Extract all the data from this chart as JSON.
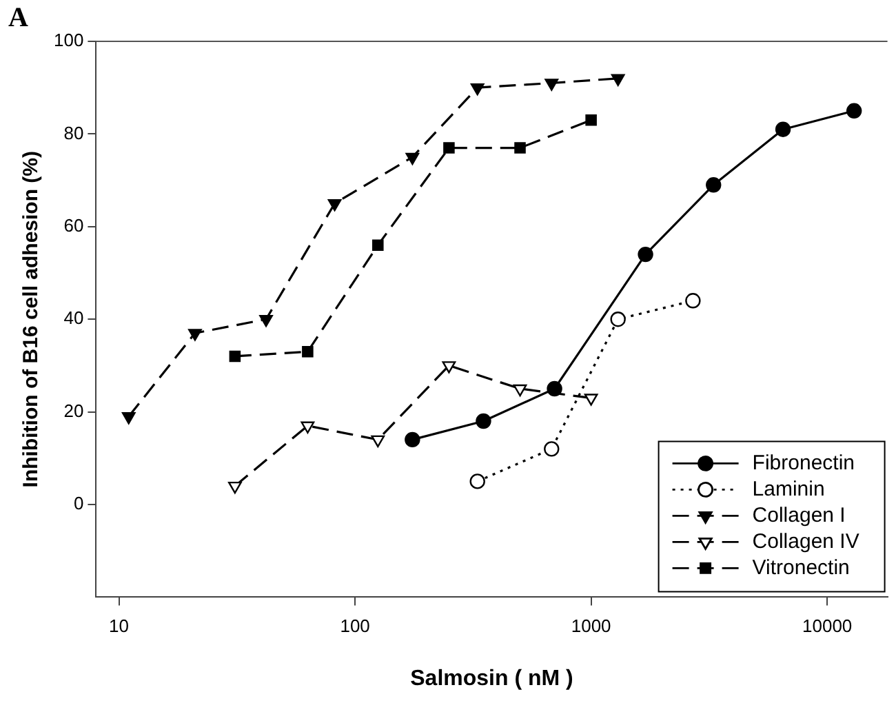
{
  "chart_data": {
    "type": "line",
    "xlabel": "Salmosin ( nM )",
    "ylabel": "Inhibition of B16 cell adhesion (%)",
    "annotations": [
      "A"
    ],
    "log": "x",
    "xlim": [
      8,
      18000
    ],
    "xticks": [
      10,
      100,
      1000,
      10000
    ],
    "ylim": [
      -20,
      100
    ],
    "yticks": [
      0,
      20,
      40,
      60,
      80,
      100
    ],
    "grid": false,
    "legend": "bottom right",
    "series": [
      {
        "name": "Fibronectin",
        "color": "#000000",
        "marker": "circle",
        "line_style": "solid",
        "x": [
          175,
          350,
          700,
          1700,
          3300,
          6500,
          13000
        ],
        "values": [
          14,
          18,
          25,
          54,
          69,
          81,
          85
        ]
      },
      {
        "name": "Laminin",
        "color": "#000000",
        "marker": "circle",
        "line_style": "dotted",
        "x": [
          330,
          680,
          1300,
          2700
        ],
        "values": [
          5,
          12,
          40,
          44
        ]
      },
      {
        "name": "Collagen I",
        "color": "#000000",
        "marker": "triangle",
        "line_style": "dashed",
        "x": [
          11,
          21,
          42,
          82,
          175,
          330,
          680,
          1300
        ],
        "values": [
          19,
          37,
          40,
          65,
          75,
          90,
          91,
          92
        ]
      },
      {
        "name": "Collagen IV",
        "color": "#000000",
        "marker": "triangle",
        "line_style": "dashed",
        "x": [
          31,
          63,
          125,
          250,
          500,
          1000
        ],
        "values": [
          4,
          17,
          14,
          30,
          25,
          23
        ]
      },
      {
        "name": "Vitronectin",
        "color": "#000000",
        "marker": "square",
        "line_style": "dashed",
        "x": [
          31,
          63,
          125,
          250,
          500,
          1000
        ],
        "values": [
          32,
          33,
          56,
          77,
          77,
          83
        ]
      }
    ]
  }
}
